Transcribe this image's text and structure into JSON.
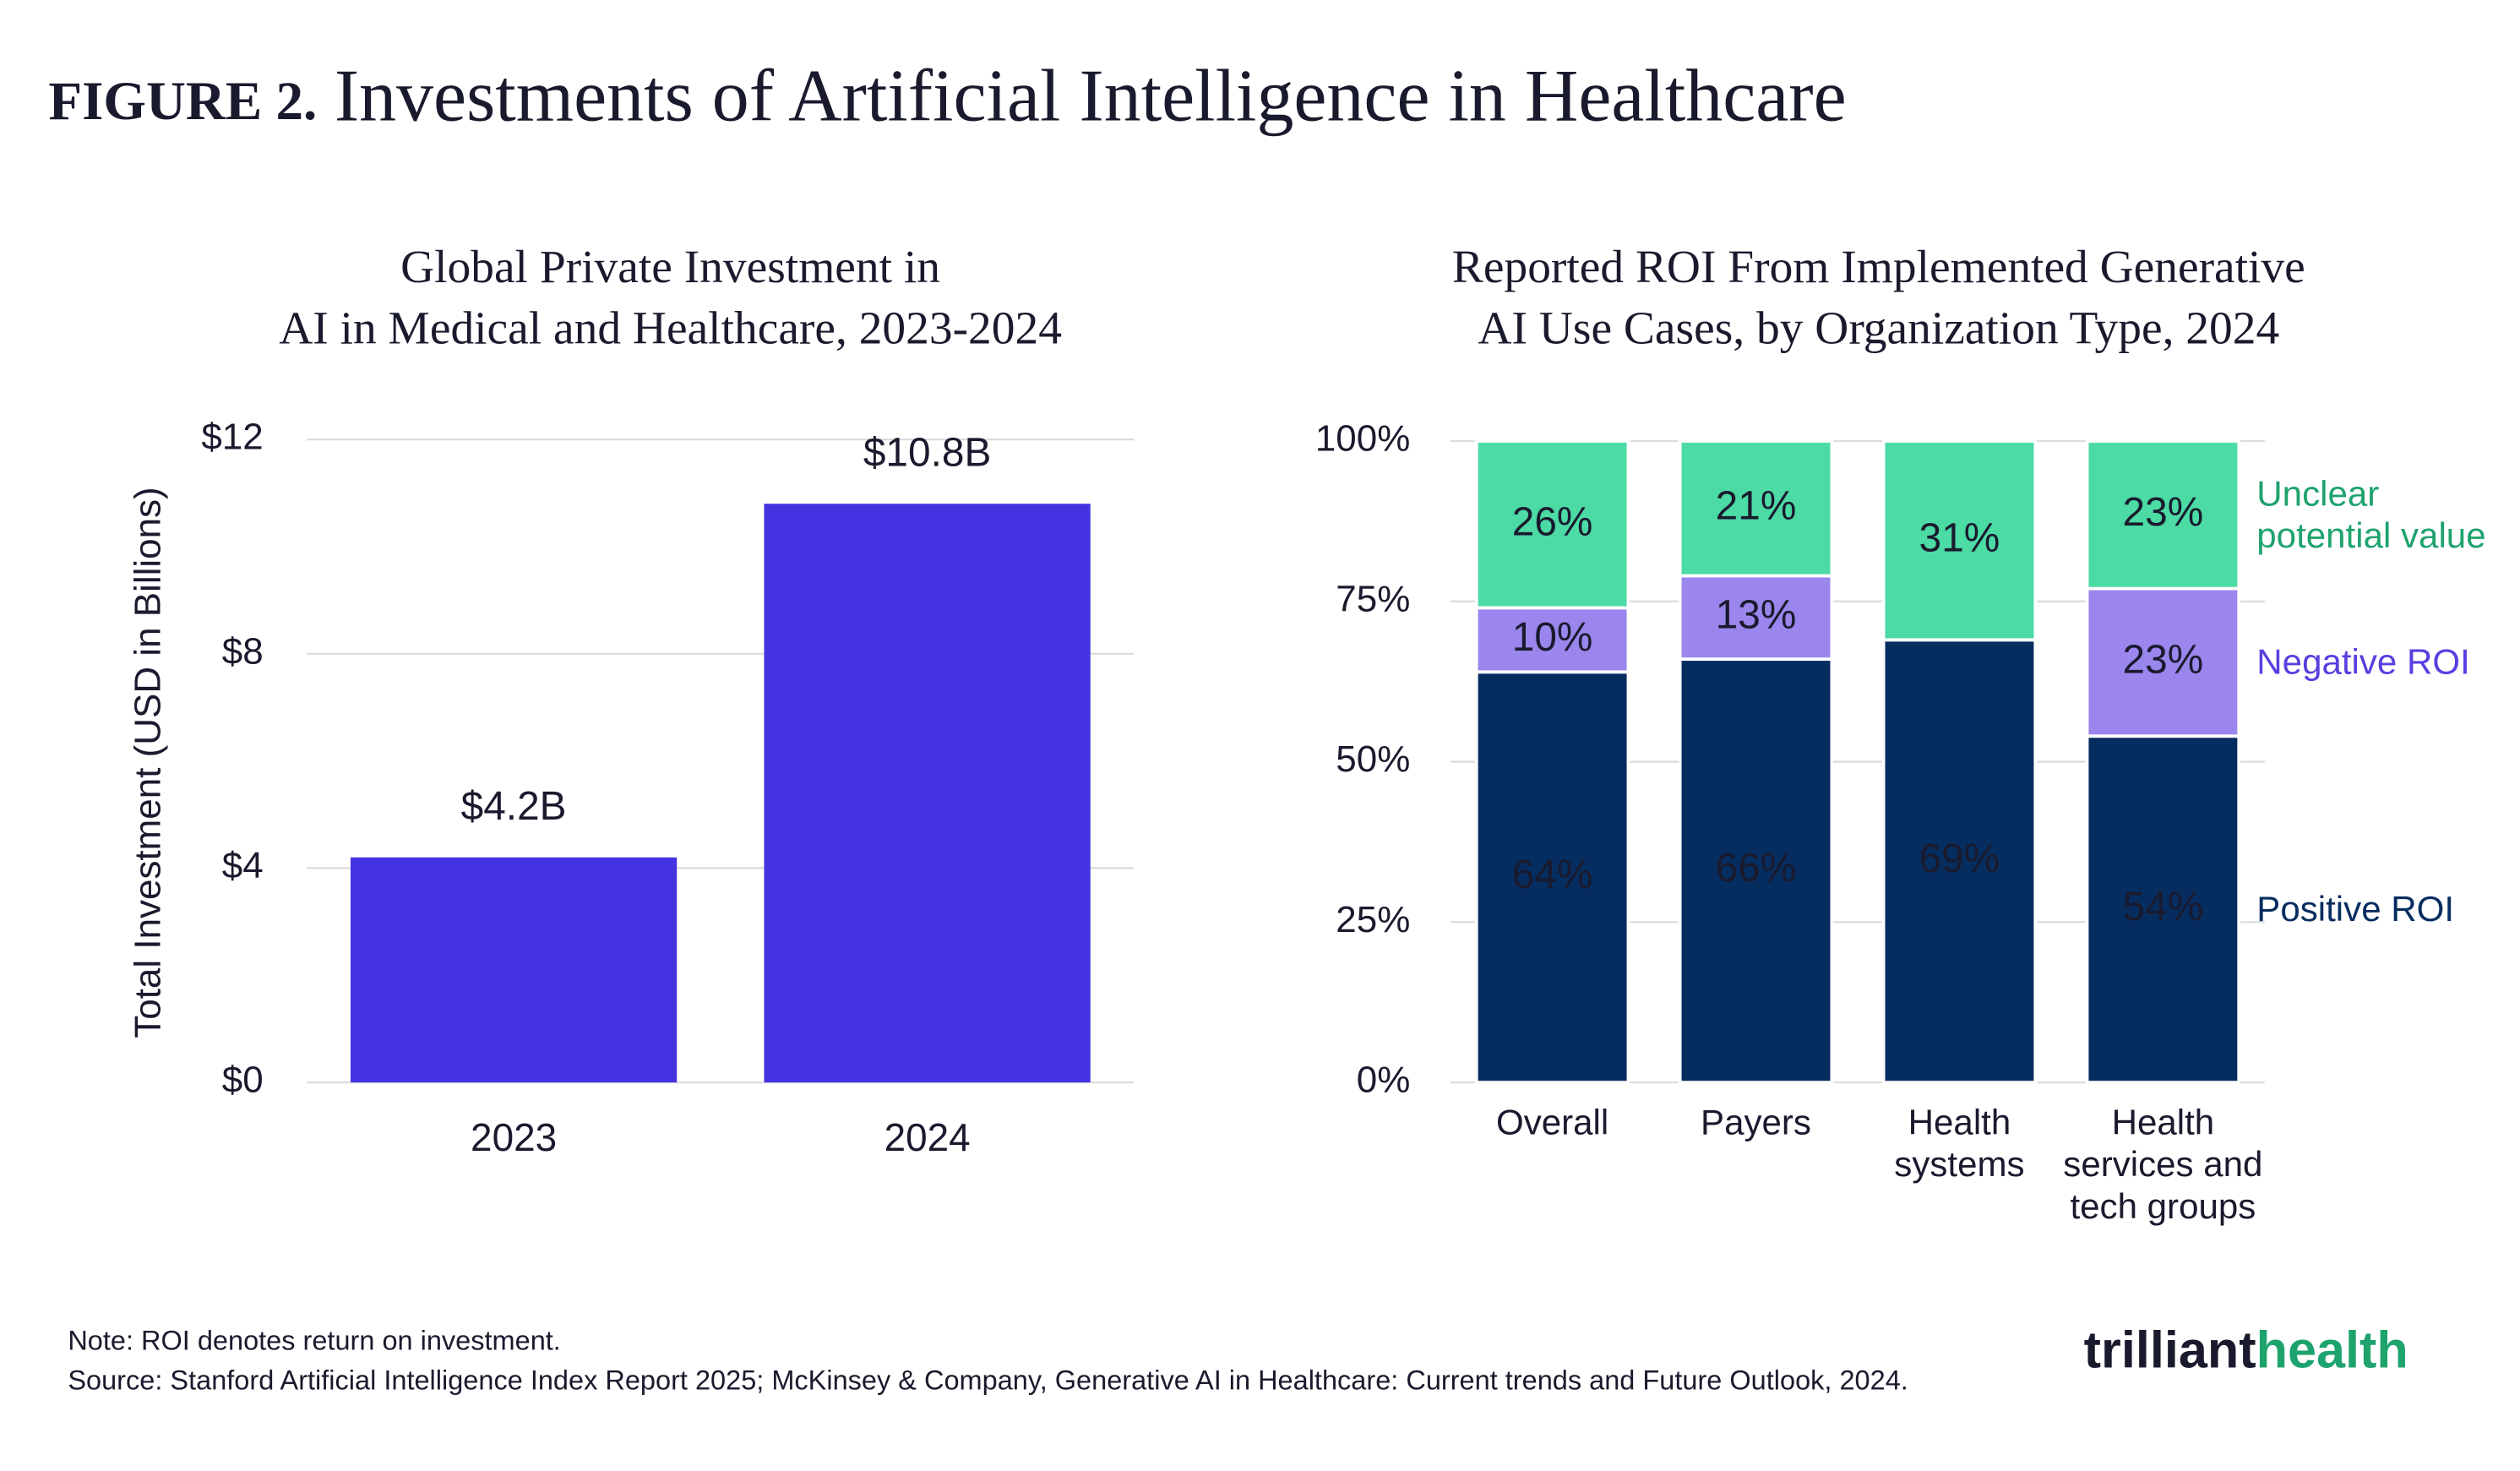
{
  "figure": {
    "label": "FIGURE 2.",
    "title": "Investments of Artificial Intelligence in Healthcare"
  },
  "chart_data": [
    {
      "type": "bar",
      "title": [
        "Global Private Investment in",
        "AI in Medical and Healthcare, 2023-2024"
      ],
      "ylabel": "Total Investment (USD in Billions)",
      "categories": [
        "2023",
        "2024"
      ],
      "values": [
        4.2,
        10.8
      ],
      "value_labels": [
        "$4.2B",
        "$10.8B"
      ],
      "color": "#4433e0",
      "ylim": [
        0,
        12
      ],
      "yticks": [
        {
          "value": 0,
          "label": "$0"
        },
        {
          "value": 4,
          "label": "$4"
        },
        {
          "value": 8,
          "label": "$8"
        },
        {
          "value": 12,
          "label": "$12"
        }
      ],
      "grid": true
    },
    {
      "type": "stacked_bar",
      "title": [
        "Reported ROI From Implemented Generative",
        "AI Use Cases, by  Organization Type, 2024"
      ],
      "categories": [
        "Overall",
        "Payers",
        "Health systems",
        "Health services and tech groups"
      ],
      "series": [
        {
          "name": "Positive ROI",
          "color": "#062d5f",
          "label_color": "#062d5f",
          "text_color": "#ffffff",
          "values": [
            64,
            66,
            69,
            54
          ],
          "value_labels": [
            "64%",
            "66%",
            "69%",
            "54%"
          ]
        },
        {
          "name": "Negative ROI",
          "color": "#9a86ec",
          "label_color": "#5a3ee0",
          "text_color": "#1a1a2e",
          "values": [
            10,
            13,
            null,
            23
          ],
          "value_labels": [
            "10%",
            "13%",
            null,
            "23%"
          ]
        },
        {
          "name": "Unclear potential value",
          "color": "#4cdba4",
          "label_color": "#1ea36e",
          "text_color": "#1a1a2e",
          "values": [
            26,
            21,
            31,
            23
          ],
          "value_labels": [
            "26%",
            "21%",
            "31%",
            "23%"
          ]
        }
      ],
      "ylim": [
        0,
        100
      ],
      "yticks": [
        {
          "value": 0,
          "label": "0%"
        },
        {
          "value": 25,
          "label": "25%"
        },
        {
          "value": 50,
          "label": "50%"
        },
        {
          "value": 75,
          "label": "75%"
        },
        {
          "value": 100,
          "label": "100%"
        }
      ],
      "grid": true
    }
  ],
  "footer": {
    "note": "Note: ROI denotes return on investment.",
    "source": "Source: Stanford Artificial Intelligence Index Report 2025; McKinsey & Company, Generative AI in Healthcare: Current trends and Future Outlook, 2024."
  },
  "logo": {
    "left": "trilliant",
    "right": "health"
  }
}
